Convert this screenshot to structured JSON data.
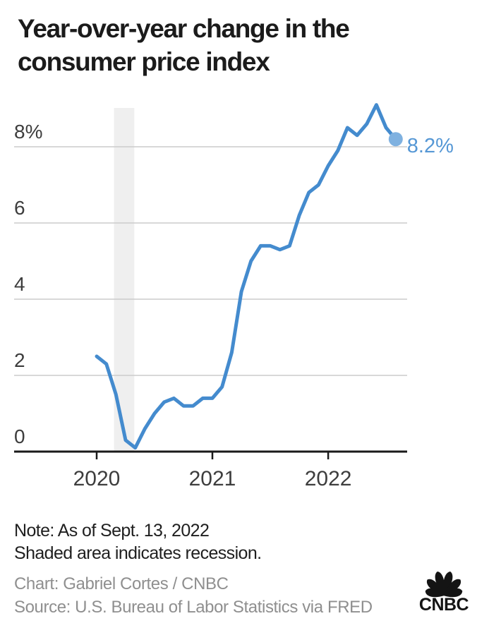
{
  "header": {
    "title_line1": "Year-over-year change in the",
    "title_line2": "consumer price index"
  },
  "chart_data": {
    "type": "line",
    "title": "Year-over-year change in the consumer price index",
    "unit": "%",
    "x": [
      "2020-01",
      "2020-02",
      "2020-03",
      "2020-04",
      "2020-05",
      "2020-06",
      "2020-07",
      "2020-08",
      "2020-09",
      "2020-10",
      "2020-11",
      "2020-12",
      "2021-01",
      "2021-02",
      "2021-03",
      "2021-04",
      "2021-05",
      "2021-06",
      "2021-07",
      "2021-08",
      "2021-09",
      "2021-10",
      "2021-11",
      "2021-12",
      "2022-01",
      "2022-02",
      "2022-03",
      "2022-04",
      "2022-05",
      "2022-06",
      "2022-07",
      "2022-08"
    ],
    "values": [
      2.5,
      2.3,
      1.5,
      0.3,
      0.1,
      0.6,
      1.0,
      1.3,
      1.4,
      1.2,
      1.2,
      1.4,
      1.4,
      1.7,
      2.6,
      4.2,
      5.0,
      5.4,
      5.4,
      5.3,
      5.4,
      6.2,
      6.8,
      7.0,
      7.5,
      7.9,
      8.5,
      8.3,
      8.6,
      9.1,
      8.5,
      8.2
    ],
    "end_label": "8.2%",
    "y_ticks": [
      {
        "value": 0,
        "label": "0"
      },
      {
        "value": 2,
        "label": "2"
      },
      {
        "value": 4,
        "label": "4"
      },
      {
        "value": 6,
        "label": "6"
      },
      {
        "value": 8,
        "label": "8%"
      }
    ],
    "x_ticks": [
      {
        "index": 0,
        "label": "2020"
      },
      {
        "index": 12,
        "label": "2021"
      },
      {
        "index": 24,
        "label": "2022"
      }
    ],
    "ylim": [
      0,
      9.3
    ],
    "grid": true,
    "legend": "none",
    "recession_band": {
      "start_index": 1.8,
      "end_index": 3.9
    },
    "colors": {
      "line": "#448bce",
      "dot": "#7fb1e0",
      "end_label": "#5597d5",
      "gridline": "#cbcbcb",
      "axis": "#1a1a1a",
      "band": "#efefef",
      "tick_label": "#3d3d3d"
    }
  },
  "footer": {
    "note_line1": "Note: As of Sept. 13, 2022",
    "note_line2": "Shaded area indicates recession.",
    "chart_credit": "Chart: Gabriel Cortes / CNBC",
    "source_credit": "Source: U.S. Bureau of Labor Statistics via FRED",
    "logo_text": "CNBC"
  }
}
